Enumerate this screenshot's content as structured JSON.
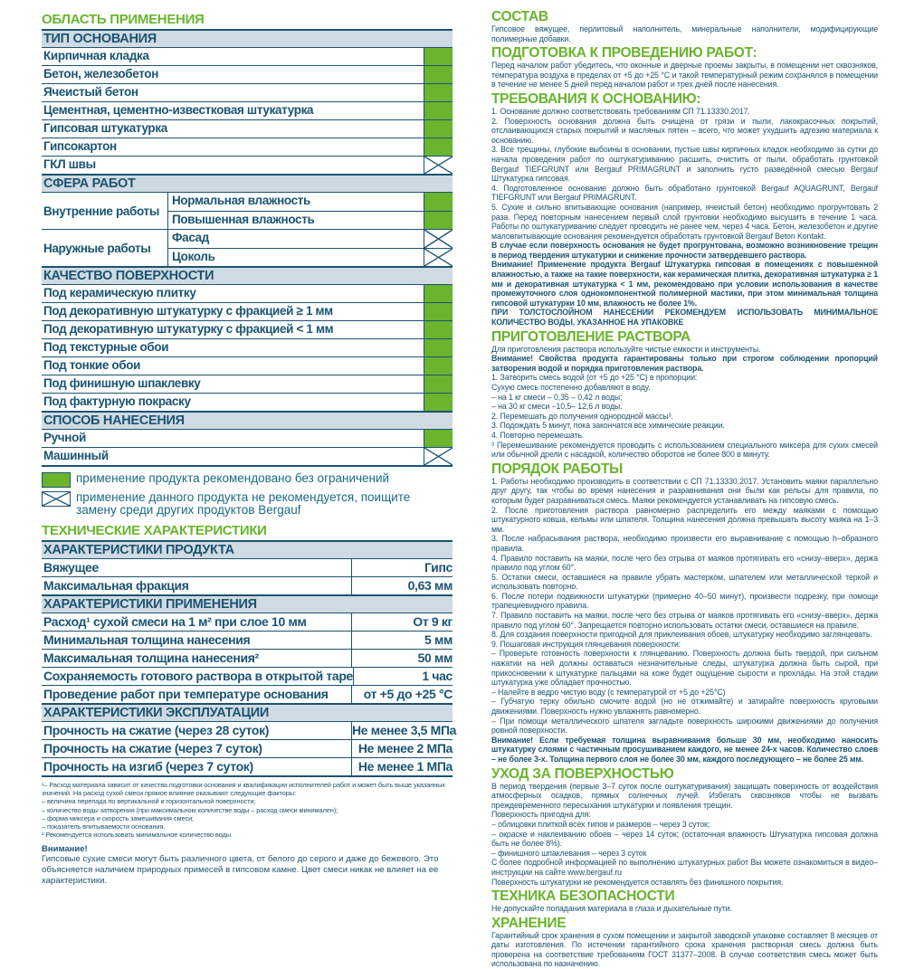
{
  "colors": {
    "accent": "#6ab42e",
    "text": "#1b5472",
    "header_bg": "#d0dae2"
  },
  "left": {
    "title": "ОБЛАСТЬ ПРИМЕНЕНИЯ",
    "blocks": [
      {
        "header": "ТИП ОСНОВАНИЯ",
        "rows": [
          {
            "label": "Кирпичная кладка",
            "mark": "ok"
          },
          {
            "label": "Бетон, железобетон",
            "mark": "ok"
          },
          {
            "label": "Ячеистый бетон",
            "mark": "ok"
          },
          {
            "label": "Цементная, цементно-известковая штукатурка",
            "mark": "ok"
          },
          {
            "label": "Гипсовая штукатурка",
            "mark": "ok"
          },
          {
            "label": "Гипсокартон",
            "mark": "ok"
          },
          {
            "label": "ГКЛ швы",
            "mark": "no"
          }
        ]
      },
      {
        "header": "СФЕРА РАБОТ",
        "groups": [
          {
            "label": "Внутренние работы",
            "rows": [
              {
                "label": "Нормальная влажность",
                "mark": "ok"
              },
              {
                "label": "Повышенная влажность",
                "mark": "ok"
              }
            ]
          },
          {
            "label": "Наружные работы",
            "rows": [
              {
                "label": "Фасад",
                "mark": "no"
              },
              {
                "label": "Цоколь",
                "mark": "no"
              }
            ]
          }
        ]
      },
      {
        "header": "КАЧЕСТВО ПОВЕРХНОСТИ",
        "rows": [
          {
            "label": "Под керамическую плитку",
            "mark": "ok"
          },
          {
            "label": "Под декоративную штукатурку с фракцией ≥ 1 мм",
            "mark": "ok"
          },
          {
            "label": "Под декоративную штукатурку с фракцией < 1 мм",
            "mark": "ok"
          },
          {
            "label": "Под текстурные обои",
            "mark": "ok"
          },
          {
            "label": "Под тонкие обои",
            "mark": "ok"
          },
          {
            "label": "Под финишную шпаклевку",
            "mark": "ok"
          },
          {
            "label": "Под фактурную покраску",
            "mark": "ok"
          }
        ]
      },
      {
        "header": "СПОСОБ НАНЕСЕНИЯ",
        "rows": [
          {
            "label": "Ручной",
            "mark": "ok"
          },
          {
            "label": "Машинный",
            "mark": "no"
          }
        ]
      }
    ],
    "legend": {
      "ok": "применение продукта рекомендовано без ограничений",
      "no": "применение данного продукта не рекомендуется, поищите замену среди других продуктов Bergauf"
    },
    "tech_title": "ТЕХНИЧЕСКИЕ ХАРАКТЕРИСТИКИ",
    "tech": [
      {
        "header": "ХАРАКТЕРИСТИКИ ПРОДУКТА",
        "rows": [
          {
            "label": "Вяжущее",
            "value": "Гипс"
          },
          {
            "label": "Максимальная фракция",
            "value": "0,63 мм"
          }
        ]
      },
      {
        "header": "ХАРАКТЕРИСТИКИ ПРИМЕНЕНИЯ",
        "rows": [
          {
            "label": "Расход¹ сухой смеси на 1 м² при слое 10 мм",
            "value": "От 9 кг"
          },
          {
            "label": "Минимальная толщина нанесения",
            "value": "5 мм"
          },
          {
            "label": "Максимальная толщина нанесения²",
            "value": "50 мм"
          },
          {
            "label": "Сохраняемость готового раствора в открытой таре",
            "value": "1 час"
          },
          {
            "label": "Проведение работ при температуре основания",
            "value": "от +5 до +25 °С"
          }
        ]
      },
      {
        "header": "ХАРАКТЕРИСТИКИ ЭКСПЛУАТАЦИИ",
        "rows": [
          {
            "label": "Прочность на сжатие (через 28 суток)",
            "value": "Не менее 3,5 МПа"
          },
          {
            "label": "Прочность на сжатие (через 7 суток)",
            "value": "Не менее 2 МПа"
          },
          {
            "label": "Прочность на изгиб (через 7 суток)",
            "value": "Не менее 1 МПа"
          }
        ]
      }
    ],
    "footnotes": [
      "¹– Расход материала зависит от качества подготовки основания и квалификации исполнителей работ и может быть выше указанных значений. На расход сухой смеси прямое влияние оказывают следующие факторы:",
      "– величина перепада по вертикальной и горизонтальной поверхности;",
      "– количество воды затворения (при максимальном количестве воды – расход смеси минимален);",
      "– форма миксера и скорость замешивания смеси;",
      "– показатель впитываемости основания.",
      "² Рекомендуется использовать минимальное количество воды"
    ],
    "warning_title": "Внимание!",
    "warning_text": "Гипсовые сухие смеси могут быть различного цвета, от белого до серого и даже до бежевого. Это объясняется наличием природных примесей в гипсовом камне. Цвет смеси никак не влияет на ее характеристики."
  },
  "right": {
    "sections": [
      {
        "heading": "СОСТАВ",
        "paras": [
          {
            "t": "Гипсовое вяжущее, перлитовый наполнитель, минеральные наполнители, модифицирующие полимерные добавки."
          }
        ]
      },
      {
        "heading": "ПОДГОТОВКА К ПРОВЕДЕНИЮ РАБОТ:",
        "paras": [
          {
            "t": "Перед началом работ убедитесь, что оконные и дверные проемы закрыты, в помещении нет сквозняков, температура воздуха в пределах от +5 до +25 °С и такой температурный режим сохранялся в помещении в течение не менее 5 дней перед началом работ и трех дней после нанесения."
          }
        ]
      },
      {
        "heading": "ТРЕБОВАНИЯ К ОСНОВАНИЮ:",
        "paras": [
          {
            "t": "1. Основание должно соответствовать требованиям СП 71.13330.2017."
          },
          {
            "t": "2. Поверхность основания должна быть очищена от грязи и пыли, лакокрасочных покрытий, отслаивающихся старых покрытий и масляных пятен – всего, что может ухудшить адгезию материала к основанию."
          },
          {
            "t": "3. Все трещины, глубокие выбоины в основании, пустые швы кирпичных кладок необходимо за сутки до начала проведения работ по оштукатуриванию расшить, очистить от пыли, обработать грунтовкой Bergauf TIEFGRUNT или Bergauf PRIMAGRUNT и заполнить густо разведённой смесью Bergauf Штукатурка гипсовая."
          },
          {
            "t": "4. Подготовленное основание должно быть обработано грунтовкой Bergauf AQUAGRUNT, Bergauf TIEFGRUNT или Bergauf PRIMAGRUNT."
          },
          {
            "t": "5. Сухие и сильно впитывающие основания (например, ячеистый бетон) необходимо прогрунтовать 2 раза. Перед повторным нанесением первый слой грунтовки необходимо высушить в течение 1 часа. Работы по оштукатуриванию следует проводить не ранее чем, через 4 часа. Бетон, железобетон и другие маловпитывающие основания рекомендуется обработать грунтовкой Bergauf Beton Kontakt."
          },
          {
            "t": "В случае если поверхность основания не будет прогрунтована, возможно возникновение трещин в период твердения штукатурки и снижение прочности затвердевшего раствора.",
            "b": true
          },
          {
            "t": "Внимание! Применение продукта Bergauf Штукатурка гипсовая в помещениях с повышенной влажностью, а также на такие поверхности, как керамическая плитка, декоративная штукатурка ≥ 1 мм и декоративная штукатурка < 1 мм, рекомендовано при условии использования в качестве промежуточного слоя однокомпонентной полимерной мастики, при этом минимальная толщина гипсовой штукатурки 10 мм, влажность не более 1%.",
            "b": true
          },
          {
            "t": "ПРИ ТОЛСТОСЛОЙНОМ НАНЕСЕНИИ РЕКОМЕНДУЕМ ИСПОЛЬЗОВАТЬ МИНИМАЛЬНОЕ КОЛИЧЕСТВО ВОДЫ, УКАЗАННОЕ НА УПАКОВКЕ",
            "b": true
          }
        ]
      },
      {
        "heading": "ПРИГОТОВЛЕНИЕ РАСТВОРА",
        "paras": [
          {
            "t": "Для приготовления раствора используйте чистые емкости и инструменты."
          },
          {
            "t": "Внимание! Свойства продукта гарантированы только при строгом соблюдении пропорций затворения водой и порядка приготовления раствора.",
            "b": true
          },
          {
            "t": "1. Затворить смесь водой (от +5 до +25 °С) в пропорции:"
          },
          {
            "t": "Сухую смесь постепенно добавляют в воду."
          },
          {
            "t": "– на 1 кг смеси – 0,35 – 0,42 л воды;"
          },
          {
            "t": "– на 30 кг смеси –10,5– 12,6 л воды."
          },
          {
            "t": "2. Перемешать до получения однородной массы³."
          },
          {
            "t": "3. Подождать 5 минут, пока закончатся все химические реакции."
          },
          {
            "t": "4. Повторно перемешать."
          },
          {
            "t": "³ Перемешивание рекомендуется проводить с использованием специального миксера для сухих смесей или обычной дрели с насадкой, количество оборотов не более 800 в минуту."
          }
        ]
      },
      {
        "heading": "ПОРЯДОК РАБОТЫ",
        "paras": [
          {
            "t": "1. Работы необходимо производить в соответствии с СП 71.13330.2017. Установить маяки параллельно друг другу, так чтобы во время нанесения и разравнивания они были как рельсы для правила, по которым будет разравниваться смесь. Маяки рекомендуется устанавливать на гипсовую смесь."
          },
          {
            "t": "2. После приготовления раствора равномерно распределить его между маяками с помощью штукатурного ковша, кельмы или шпателя. Толщина нанесения должна превышать высоту маяка на 1–3 мм."
          },
          {
            "t": "3. После набрасывания раствора, необходимо произвести его выравнивание с помощью h–образного правила."
          },
          {
            "t": "4. Правило поставить на маяки, после чего без отрыва от маяков протягивать его «снизу–вверх», держа правило под углом 60°."
          },
          {
            "t": "5. Остатки смеси, оставшиеся на правиле убрать мастерком, шпателем или металлической теркой и использовать повторно."
          },
          {
            "t": "6. После потери подвижности штукатурки (примерно 40–50 минут), произвести подрезку, при помощи трапециевидного правила."
          },
          {
            "t": "7. Правило поставить на маяки, после чего без отрыва от маяков протягивать его «снизу–вверх», держа правило под углом 60°. Запрещается повторно использовать остатки смеси, оставшиеся на правиле."
          },
          {
            "t": "8. Для создания поверхности пригодной для приклеивания обоев, штукатурку необходимо заглянцевать."
          },
          {
            "t": "9. Пошаговая инструкция глянцевания поверхности:"
          },
          {
            "t": "– Проверьте готовность поверхности к глянцеванию. Поверхность должна быть твердой, при сильном нажатии на ней должны оставаться незначительные следы, штукатурка должна быть сырой, при прикосновении к штукатурке пальцами на коже будет ощущение сырости и прохлады. На этой стадии штукатурка уже обладает прочностью."
          },
          {
            "t": "– Налейте в ведро чистую воду (с температурой от +5 до +25°С)"
          },
          {
            "t": "– Губчатую терку обильно смочите водой (но не отжимайте) и затирайте поверхность круговыми движениями. Поверхность нужно увлажнять равномерно."
          },
          {
            "t": "– При помощи металлического шпателя загладьте поверхность широкими движениями до получения ровной поверхности."
          },
          {
            "t": "Внимание! Если требуемая толщина выравнивания больше 30 мм, необходимо наносить штукатурку слоями с частичным просушиванием каждого, не менее 24-х часов. Количество слоев – не более 3-х. Толщина первого слоя не более 30 мм, каждого последующего – не более 25 мм.",
            "b": true
          }
        ]
      },
      {
        "heading": "УХОД ЗА ПОВЕРХНОСТЬЮ",
        "paras": [
          {
            "t": "В период твердения (первые 3–7 суток после оштукатуривания) защищать поверхность от воздействия атмосферных осадков, прямых солнечных лучей. Избегать сквозняков чтобы не вызвать преждевременного пересыхания штукатурки и появления трещин."
          },
          {
            "t": "Поверхность пригодна для:"
          },
          {
            "t": "– облицовки плиткой всех типов и размеров – через 3 суток;"
          },
          {
            "t": "– окраске и наклеиванию обоев – через 14 суток; (остаточная влажность Штукатурка гипсовая должна быть не более 8%)."
          },
          {
            "t": "– финишного шпаклевания – через 3 суток"
          },
          {
            "t": "С более подробной информацией по выполнению штукатурных работ Вы можете ознакомиться в видео–инструкции на сайте www.bergauf.ru"
          },
          {
            "t": "Поверхность штукатурки не рекомендуется оставлять без финишного покрытия."
          }
        ]
      },
      {
        "heading": "ТЕХНИКА БЕЗОПАСНОСТИ",
        "paras": [
          {
            "t": "Не допускайте попадания материала в глаза и дыхательные пути."
          }
        ]
      },
      {
        "heading": "ХРАНЕНИЕ",
        "paras": [
          {
            "t": "Гарантийный срок хранения в сухом помещении и закрытой заводской упаковке составляет 8 месяцев от даты изготовления. По истечении гарантийного срока хранения растворная смесь должна быть проверена на соответствие требованиям ГОСТ 31377–2008. В случае соответствия смесь может быть использована по назначению."
          }
        ]
      }
    ]
  }
}
